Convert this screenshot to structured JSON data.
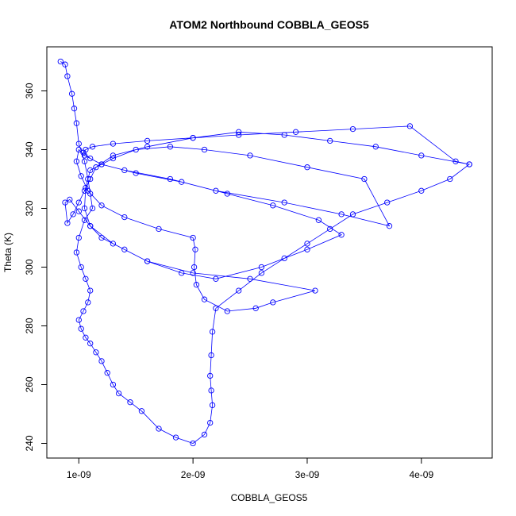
{
  "chart_data": {
    "type": "scatter",
    "title": "ATOM2 Northbound COBBLA_GEOS5",
    "xlabel": "COBBLA_GEOS5",
    "ylabel": "Theta (K)",
    "xlim": [
      7.2e-10,
      4.62e-09
    ],
    "ylim": [
      235,
      375
    ],
    "x_ticks": [
      1e-09,
      2e-09,
      3e-09,
      4e-09
    ],
    "x_tick_labels": [
      "1e-09",
      "2e-09",
      "3e-09",
      "4e-09"
    ],
    "y_ticks": [
      240,
      260,
      280,
      300,
      320,
      340,
      360
    ],
    "y_tick_labels": [
      "240",
      "260",
      "280",
      "300",
      "320",
      "340",
      "360"
    ],
    "grid": false,
    "series": [
      {
        "color": "#0000ff",
        "markers": "open-circle",
        "connected": true,
        "x": [
          8.4e-10,
          8.8e-10,
          9e-10,
          9.4e-10,
          9.6e-10,
          9.8e-10,
          1e-09,
          1.05e-09,
          1.08e-09,
          1.1e-09,
          1.12e-09,
          1.05e-09,
          1e-09,
          9.8e-10,
          1.02e-09,
          1.06e-09,
          1.1e-09,
          1.08e-09,
          1.04e-09,
          1e-09,
          1.02e-09,
          1.06e-09,
          1.1e-09,
          1.15e-09,
          1.2e-09,
          1.25e-09,
          1.3e-09,
          1.35e-09,
          1.45e-09,
          1.55e-09,
          1.7e-09,
          1.85e-09,
          2e-09,
          2.1e-09,
          2.15e-09,
          2.17e-09,
          2.16e-09,
          2.15e-09,
          2.16e-09,
          2.17e-09,
          2.2e-09,
          2.4e-09,
          2.6e-09,
          2.8e-09,
          3e-09,
          3.2e-09,
          3.4e-09,
          3.7e-09,
          4e-09,
          4.25e-09,
          4.42e-09,
          4e-09,
          3.6e-09,
          3.2e-09,
          2.8e-09,
          2.4e-09,
          2e-09,
          1.6e-09,
          1.3e-09,
          1.15e-09,
          1.1e-09,
          1.05e-09,
          1e-09,
          9.5e-10,
          9e-10,
          8.8e-10,
          9.2e-10,
          1e-09,
          1.1e-09,
          1.2e-09,
          1.4e-09,
          1.6e-09,
          1.9e-09,
          2.2e-09,
          2.6e-09,
          3e-09,
          3.3e-09,
          3.1e-09,
          2.7e-09,
          2.3e-09,
          1.9e-09,
          1.5e-09,
          1.2e-09,
          1.05e-09,
          1e-09,
          9.8e-10,
          1.02e-09,
          1.08e-09,
          1.2e-09,
          1.4e-09,
          1.7e-09,
          2e-09,
          2.02e-09,
          2.01e-09,
          2.03e-09,
          2.1e-09,
          2.3e-09,
          2.55e-09,
          2.7e-09,
          3.07e-09,
          2.5e-09,
          2e-09,
          1.6e-09,
          1.3e-09,
          1.1e-09,
          1.05e-09,
          1.06e-09,
          1.1e-09,
          1.3e-09,
          1.5e-09,
          1.8e-09,
          2.1e-09,
          2.5e-09,
          3e-09,
          3.5e-09,
          3.72e-09,
          3.3e-09,
          2.8e-09,
          2.2e-09,
          1.8e-09,
          1.4e-09,
          1.2e-09,
          1.1e-09,
          1.04e-09,
          1.06e-09,
          1.12e-09,
          1.3e-09,
          1.6e-09,
          2e-09,
          2.4e-09,
          2.9e-09,
          3.4e-09,
          3.9e-09,
          4.3e-09,
          4.42e-09
        ],
        "y": [
          370,
          369,
          365,
          359,
          354,
          349,
          342,
          336,
          330,
          325,
          320,
          316,
          310,
          305,
          300,
          296,
          292,
          288,
          285,
          282,
          279,
          276,
          274,
          271,
          268,
          264,
          260,
          257,
          254,
          251,
          245,
          242,
          240,
          243,
          247,
          253,
          258,
          263,
          270,
          278,
          286,
          292,
          298,
          303,
          308,
          313,
          318,
          322,
          326,
          330,
          335,
          338,
          341,
          343,
          345,
          346,
          344,
          341,
          338,
          334,
          330,
          326,
          322,
          318,
          315,
          322,
          323,
          319,
          314,
          310,
          306,
          302,
          298,
          296,
          300,
          306,
          311,
          316,
          321,
          325,
          329,
          332,
          335,
          338,
          340,
          336,
          331,
          326,
          321,
          317,
          313,
          310,
          306,
          300,
          294,
          289,
          285,
          286,
          288,
          292,
          296,
          298,
          302,
          308,
          314,
          320,
          327,
          333,
          337,
          340,
          341,
          340,
          338,
          334,
          330,
          314,
          318,
          322,
          326,
          330,
          333,
          335,
          337,
          339,
          340,
          341,
          342,
          343,
          344,
          345,
          346,
          347,
          348,
          336,
          335
        ]
      }
    ]
  }
}
